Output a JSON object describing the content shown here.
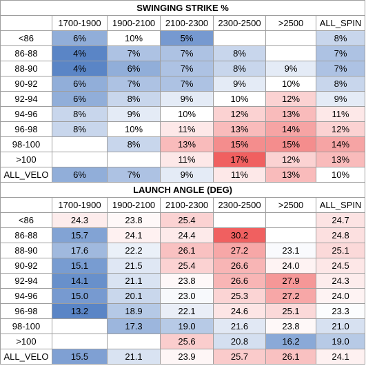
{
  "columns": [
    "1700-1900",
    "1900-2100",
    "2100-2300",
    "2300-2500",
    ">2500",
    "ALL_SPIN"
  ],
  "color_scale": {
    "low": "#5a85c6",
    "mid": "#ffffff",
    "high": "#f06060"
  },
  "tables": [
    {
      "title": "SWINGING STRIKE %",
      "scale": {
        "min": 4,
        "mid": 10,
        "max": 17
      },
      "rows": [
        {
          "label": "<86",
          "cells": [
            "6%",
            "10%",
            "5%",
            "",
            "",
            "8%"
          ],
          "values": [
            6,
            10,
            5,
            null,
            null,
            8
          ]
        },
        {
          "label": "86-88",
          "cells": [
            "4%",
            "7%",
            "7%",
            "8%",
            "",
            "7%"
          ],
          "values": [
            4,
            7,
            7,
            8,
            null,
            7
          ]
        },
        {
          "label": "88-90",
          "cells": [
            "4%",
            "6%",
            "7%",
            "8%",
            "9%",
            "7%"
          ],
          "values": [
            4,
            6,
            7,
            8,
            9,
            7
          ]
        },
        {
          "label": "90-92",
          "cells": [
            "6%",
            "7%",
            "7%",
            "9%",
            "10%",
            "8%"
          ],
          "values": [
            6,
            7,
            7,
            9,
            10,
            8
          ]
        },
        {
          "label": "92-94",
          "cells": [
            "6%",
            "8%",
            "9%",
            "10%",
            "12%",
            "9%"
          ],
          "values": [
            6,
            8,
            9,
            10,
            12,
            9
          ]
        },
        {
          "label": "94-96",
          "cells": [
            "8%",
            "9%",
            "10%",
            "12%",
            "13%",
            "11%"
          ],
          "values": [
            8,
            9,
            10,
            12,
            13,
            11
          ]
        },
        {
          "label": "96-98",
          "cells": [
            "8%",
            "10%",
            "11%",
            "13%",
            "14%",
            "12%"
          ],
          "values": [
            8,
            10,
            11,
            13,
            14,
            12
          ]
        },
        {
          "label": "98-100",
          "cells": [
            "",
            "8%",
            "13%",
            "15%",
            "15%",
            "14%"
          ],
          "values": [
            null,
            8,
            13,
            15,
            15,
            14
          ]
        },
        {
          "label": ">100",
          "cells": [
            "",
            "",
            "11%",
            "17%",
            "12%",
            "13%"
          ],
          "values": [
            null,
            null,
            11,
            17,
            12,
            13
          ]
        }
      ],
      "total": {
        "label": "ALL_VELO",
        "cells": [
          "6%",
          "7%",
          "9%",
          "11%",
          "13%",
          "10%"
        ],
        "values": [
          6,
          7,
          9,
          11,
          13,
          10
        ]
      }
    },
    {
      "title": "LAUNCH ANGLE (DEG)",
      "scale": {
        "min": 13.2,
        "mid": 23.5,
        "max": 30.2
      },
      "rows": [
        {
          "label": "<86",
          "cells": [
            "24.3",
            "23.8",
            "25.4",
            "",
            "",
            "24.7"
          ],
          "values": [
            24.3,
            23.8,
            25.4,
            null,
            null,
            24.7
          ]
        },
        {
          "label": "86-88",
          "cells": [
            "15.7",
            "24.1",
            "24.4",
            "30.2",
            "",
            "24.8"
          ],
          "values": [
            15.7,
            24.1,
            24.4,
            30.2,
            null,
            24.8
          ]
        },
        {
          "label": "88-90",
          "cells": [
            "17.6",
            "22.2",
            "26.1",
            "27.2",
            "23.1",
            "25.1"
          ],
          "values": [
            17.6,
            22.2,
            26.1,
            27.2,
            23.1,
            25.1
          ]
        },
        {
          "label": "90-92",
          "cells": [
            "15.1",
            "21.5",
            "25.4",
            "26.6",
            "24.0",
            "24.5"
          ],
          "values": [
            15.1,
            21.5,
            25.4,
            26.6,
            24.0,
            24.5
          ]
        },
        {
          "label": "92-94",
          "cells": [
            "14.1",
            "21.1",
            "23.8",
            "26.6",
            "27.9",
            "24.3"
          ],
          "values": [
            14.1,
            21.1,
            23.8,
            26.6,
            27.9,
            24.3
          ]
        },
        {
          "label": "94-96",
          "cells": [
            "15.0",
            "20.1",
            "23.0",
            "25.3",
            "27.2",
            "24.0"
          ],
          "values": [
            15.0,
            20.1,
            23.0,
            25.3,
            27.2,
            24.0
          ]
        },
        {
          "label": "96-98",
          "cells": [
            "13.2",
            "18.9",
            "22.1",
            "24.6",
            "25.1",
            "23.3"
          ],
          "values": [
            13.2,
            18.9,
            22.1,
            24.6,
            25.1,
            23.3
          ]
        },
        {
          "label": "98-100",
          "cells": [
            "",
            "17.3",
            "19.0",
            "21.6",
            "23.8",
            "21.0"
          ],
          "values": [
            null,
            17.3,
            19.0,
            21.6,
            23.8,
            21.0
          ]
        },
        {
          "label": ">100",
          "cells": [
            "",
            "",
            "25.6",
            "20.8",
            "16.2",
            "19.0"
          ],
          "values": [
            null,
            null,
            25.6,
            20.8,
            16.2,
            19.0
          ]
        }
      ],
      "total": {
        "label": "ALL_VELO",
        "cells": [
          "15.5",
          "21.1",
          "23.9",
          "25.7",
          "26.1",
          "24.1"
        ],
        "values": [
          15.5,
          21.1,
          23.9,
          25.7,
          26.1,
          24.1
        ]
      }
    }
  ]
}
